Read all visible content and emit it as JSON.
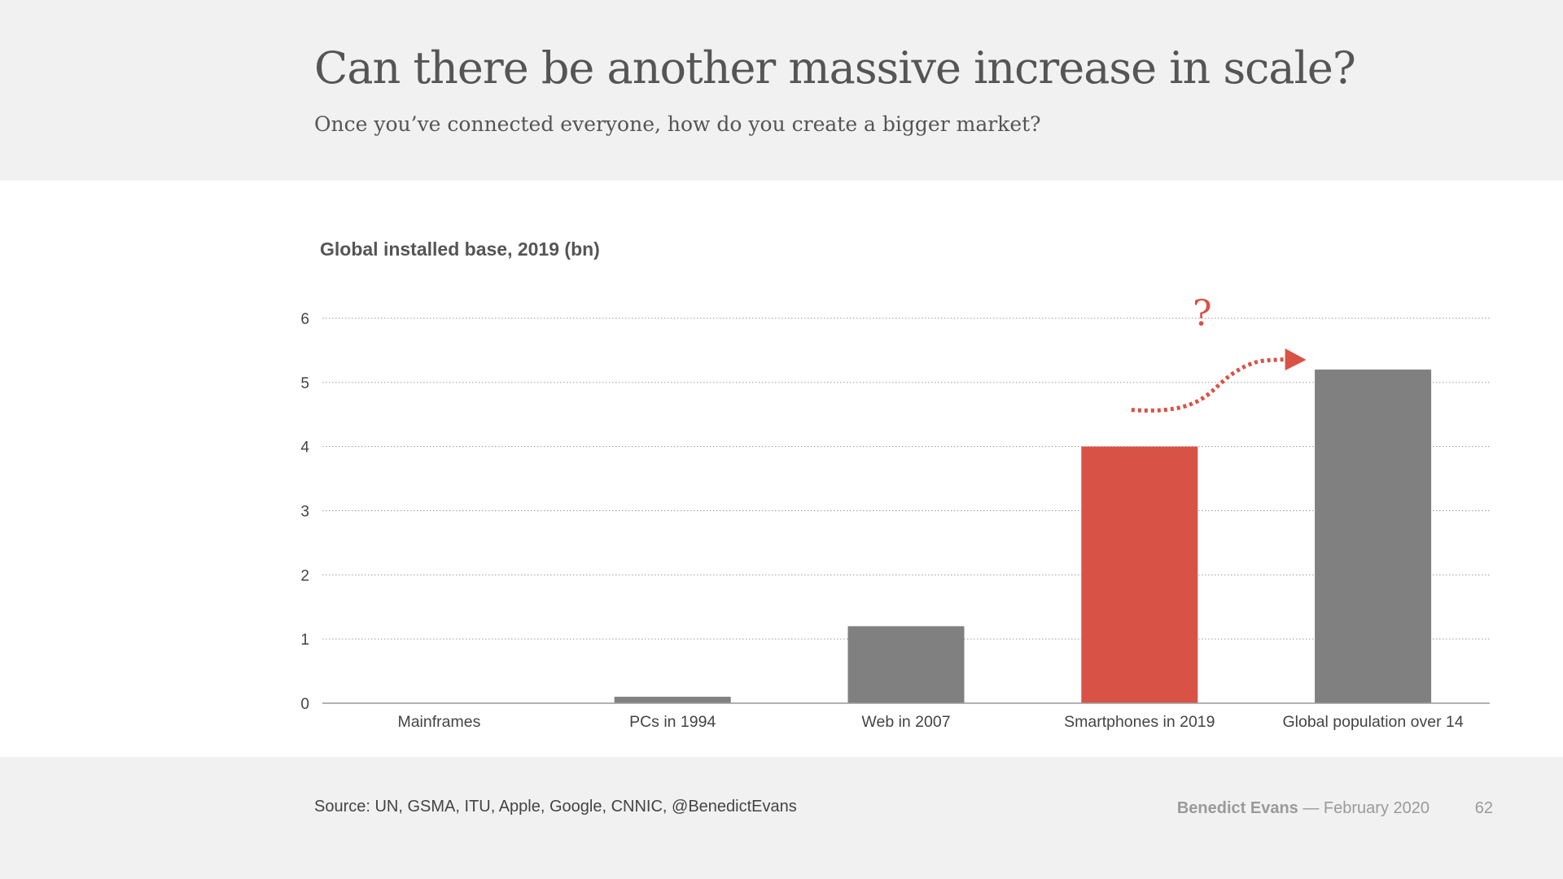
{
  "slide": {
    "title": "Can there be another massive increase in scale?",
    "subtitle": "Once you’ve connected everyone, how do you create a bigger market?"
  },
  "chart_data": {
    "type": "bar",
    "title": "Global installed base, 2019 (bn)",
    "categories": [
      "Mainframes",
      "PCs in 1994",
      "Web in 2007",
      "Smartphones in 2019",
      "Global population over 14"
    ],
    "values": [
      0,
      0.1,
      1.2,
      4.0,
      5.2
    ],
    "highlight_index": 3,
    "bar_color": "#808080",
    "highlight_color": "#d95246",
    "ylim": [
      0,
      6
    ],
    "yticks": [
      0,
      1,
      2,
      3,
      4,
      5,
      6
    ],
    "grid": "dotted horizontal",
    "annotation": {
      "text": "?",
      "color": "#d95246",
      "arrow": "dotted arrow from Smartphones in 2019 to Global population over 14"
    }
  },
  "footer": {
    "source": "Source: UN, GSMA, ITU, Apple, Google, CNNIC, @BenedictEvans",
    "author": "Benedict Evans",
    "date": "— February 2020",
    "page": "62"
  }
}
